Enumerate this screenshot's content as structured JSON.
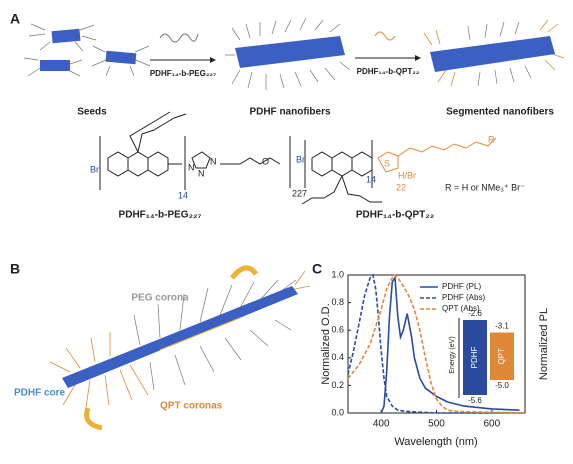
{
  "panel_a": {
    "label": "A",
    "stages": [
      "Seeds",
      "PDHF nanofibers",
      "Segmented nanofibers"
    ],
    "reagents": [
      "PDHF₁₄-b-PEG₂₂₇",
      "PDHF₁₄-b-QPT₂₂"
    ],
    "structures": [
      {
        "name": "PDHF₁₄-b-PEG₂₂₇",
        "atoms": [
          "Br",
          "N",
          "N",
          "N",
          "O"
        ],
        "subscripts": [
          "14",
          "227"
        ]
      },
      {
        "name": "PDHF₁₄-b-QPT₂₂",
        "atoms": [
          "Br",
          "S",
          "H/Br",
          "R"
        ],
        "subscripts": [
          "14",
          "22"
        ],
        "substituent": "R = H or NMe₃⁺ Br⁻"
      }
    ]
  },
  "panel_b": {
    "label": "B",
    "labels": [
      "PEG corona",
      "PDHF core",
      "QPT coronas"
    ]
  },
  "chart_data": {
    "type": "line",
    "panel": "C",
    "xlabel": "Wavelength (nm)",
    "ylabel": "Normalized O.D.",
    "y2label": "Normalized PL",
    "xlim": [
      340,
      660
    ],
    "xticks": [
      400,
      500,
      600
    ],
    "ylim": [
      0,
      1
    ],
    "yticks": [
      {
        "value": 0,
        "label": "0.0"
      },
      {
        "value": 0.2,
        "label": "0.2"
      },
      {
        "value": 0.4,
        "label": "0.4"
      },
      {
        "value": 0.6,
        "label": "0.6"
      },
      {
        "value": 0.8,
        "label": "0.8"
      },
      {
        "value": 1,
        "label": "1.0"
      }
    ],
    "series": [
      {
        "name": "PDHF (PL)",
        "color": "#2b4aa0",
        "dashed": false,
        "x": [
          400,
          405,
          410,
          415,
          420,
          425,
          430,
          435,
          440,
          447,
          455,
          460,
          470,
          480,
          500,
          520,
          550,
          600,
          650
        ],
        "values": [
          0,
          0.05,
          0.3,
          0.7,
          0.95,
          0.98,
          0.7,
          0.55,
          0.6,
          0.72,
          0.55,
          0.4,
          0.25,
          0.18,
          0.12,
          0.08,
          0.05,
          0.03,
          0.02
        ]
      },
      {
        "name": "PDHF (Abs)",
        "color": "#2b4aa0",
        "dashed": true,
        "x": [
          340,
          350,
          360,
          370,
          380,
          385,
          390,
          395,
          400,
          405,
          410,
          420,
          430,
          450,
          500,
          600,
          660
        ],
        "values": [
          0.28,
          0.45,
          0.65,
          0.85,
          0.98,
          1,
          0.9,
          0.7,
          0.45,
          0.25,
          0.12,
          0.05,
          0.02,
          0.01,
          0,
          0,
          0
        ]
      },
      {
        "name": "QPT (Abs)",
        "color": "#e0883a",
        "dashed": true,
        "x": [
          340,
          360,
          380,
          400,
          410,
          420,
          425,
          430,
          440,
          450,
          460,
          470,
          480,
          490,
          500,
          510,
          520,
          540,
          660
        ],
        "values": [
          0.25,
          0.35,
          0.5,
          0.75,
          0.9,
          0.98,
          1,
          0.98,
          0.92,
          0.85,
          0.75,
          0.6,
          0.4,
          0.22,
          0.1,
          0.05,
          0.02,
          0.01,
          0
        ]
      }
    ],
    "inset": {
      "axis_label": "Energy (eV)",
      "materials": [
        {
          "name": "PDHF",
          "color": "#2b4aa0",
          "lumo": {
            "value": -2.6,
            "label": "-2.6"
          },
          "homo": {
            "value": -5.6,
            "label": "-5.6"
          }
        },
        {
          "name": "QPT",
          "color": "#e0883a",
          "lumo": {
            "value": -3.1,
            "label": "-3.1"
          },
          "homo": {
            "value": -5,
            "label": "-5.0"
          }
        }
      ]
    }
  }
}
